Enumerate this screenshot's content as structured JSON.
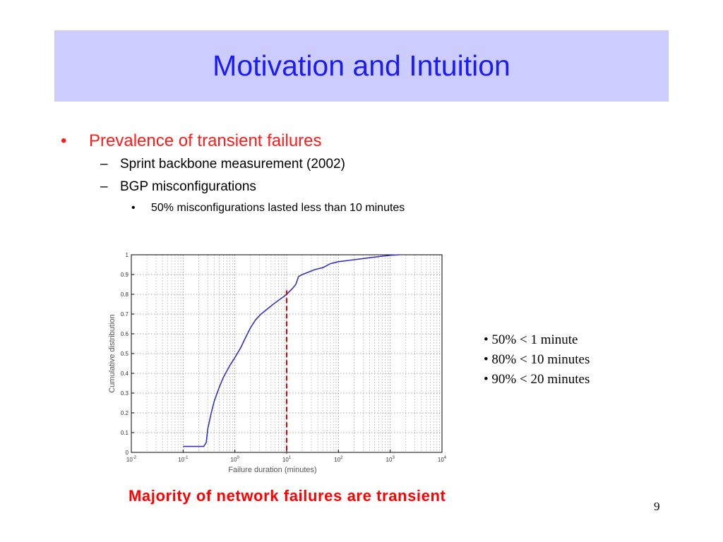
{
  "slide": {
    "title": "Motivation and Intuition",
    "bullets": [
      {
        "level": 1,
        "marker": "•",
        "text": "Prevalence of transient failures"
      },
      {
        "level": 2,
        "marker": "–",
        "text": "Sprint backbone measurement (2002)"
      },
      {
        "level": 2,
        "marker": "–",
        "text": "BGP misconfigurations"
      },
      {
        "level": 3,
        "marker": "•",
        "text": "50% misconfigurations lasted less than 10 minutes"
      }
    ],
    "notes": [
      "• 50% < 1 minute",
      "• 80% < 10 minutes",
      "• 90% < 20 minutes"
    ],
    "footer": "Majority of network failures are transient",
    "page_number": "9"
  },
  "chart_data": {
    "type": "line",
    "title": "",
    "xlabel": "Failure duration (minutes)",
    "ylabel": "Cumulative distribution",
    "xscale": "log",
    "xlim": [
      0.01,
      10000
    ],
    "ylim": [
      0,
      1
    ],
    "grid": true,
    "legend": "none",
    "x_ticks": [
      {
        "value": 0.01,
        "base": "10",
        "exp": "-2"
      },
      {
        "value": 0.1,
        "base": "10",
        "exp": "-1"
      },
      {
        "value": 1,
        "base": "10",
        "exp": "0"
      },
      {
        "value": 10,
        "base": "10",
        "exp": "1"
      },
      {
        "value": 100,
        "base": "10",
        "exp": "2"
      },
      {
        "value": 1000,
        "base": "10",
        "exp": "3"
      },
      {
        "value": 10000,
        "base": "10",
        "exp": "4"
      }
    ],
    "y_ticks": [
      {
        "value": 0,
        "label": "0"
      },
      {
        "value": 0.1,
        "label": "0.1"
      },
      {
        "value": 0.2,
        "label": "0.2"
      },
      {
        "value": 0.3,
        "label": "0.3"
      },
      {
        "value": 0.4,
        "label": "0.4"
      },
      {
        "value": 0.5,
        "label": "0.5"
      },
      {
        "value": 0.6,
        "label": "0.6"
      },
      {
        "value": 0.7,
        "label": "0.7"
      },
      {
        "value": 0.8,
        "label": "0.8"
      },
      {
        "value": 0.9,
        "label": "0.9"
      },
      {
        "value": 1,
        "label": "1"
      }
    ],
    "series": [
      {
        "color": "#3333bb",
        "points": [
          [
            0.1,
            0.03
          ],
          [
            0.25,
            0.03
          ],
          [
            0.28,
            0.05
          ],
          [
            0.3,
            0.12
          ],
          [
            0.35,
            0.2
          ],
          [
            0.4,
            0.26
          ],
          [
            0.5,
            0.33
          ],
          [
            0.6,
            0.38
          ],
          [
            0.8,
            0.44
          ],
          [
            1.0,
            0.48
          ],
          [
            1.3,
            0.53
          ],
          [
            1.6,
            0.58
          ],
          [
            2.0,
            0.63
          ],
          [
            2.5,
            0.67
          ],
          [
            3.2,
            0.7
          ],
          [
            4.0,
            0.72
          ],
          [
            5.5,
            0.75
          ],
          [
            7.0,
            0.77
          ],
          [
            9.0,
            0.79
          ],
          [
            10,
            0.8
          ],
          [
            13,
            0.83
          ],
          [
            15,
            0.85
          ],
          [
            17,
            0.89
          ],
          [
            20,
            0.9
          ],
          [
            25,
            0.91
          ],
          [
            35,
            0.925
          ],
          [
            50,
            0.935
          ],
          [
            70,
            0.955
          ],
          [
            100,
            0.965
          ],
          [
            200,
            0.975
          ],
          [
            400,
            0.985
          ],
          [
            700,
            0.993
          ],
          [
            1000,
            0.997
          ],
          [
            1500,
            1.0
          ]
        ]
      }
    ],
    "reference_line": {
      "x": 10,
      "color": "#dd0000",
      "style": "dashed"
    }
  }
}
